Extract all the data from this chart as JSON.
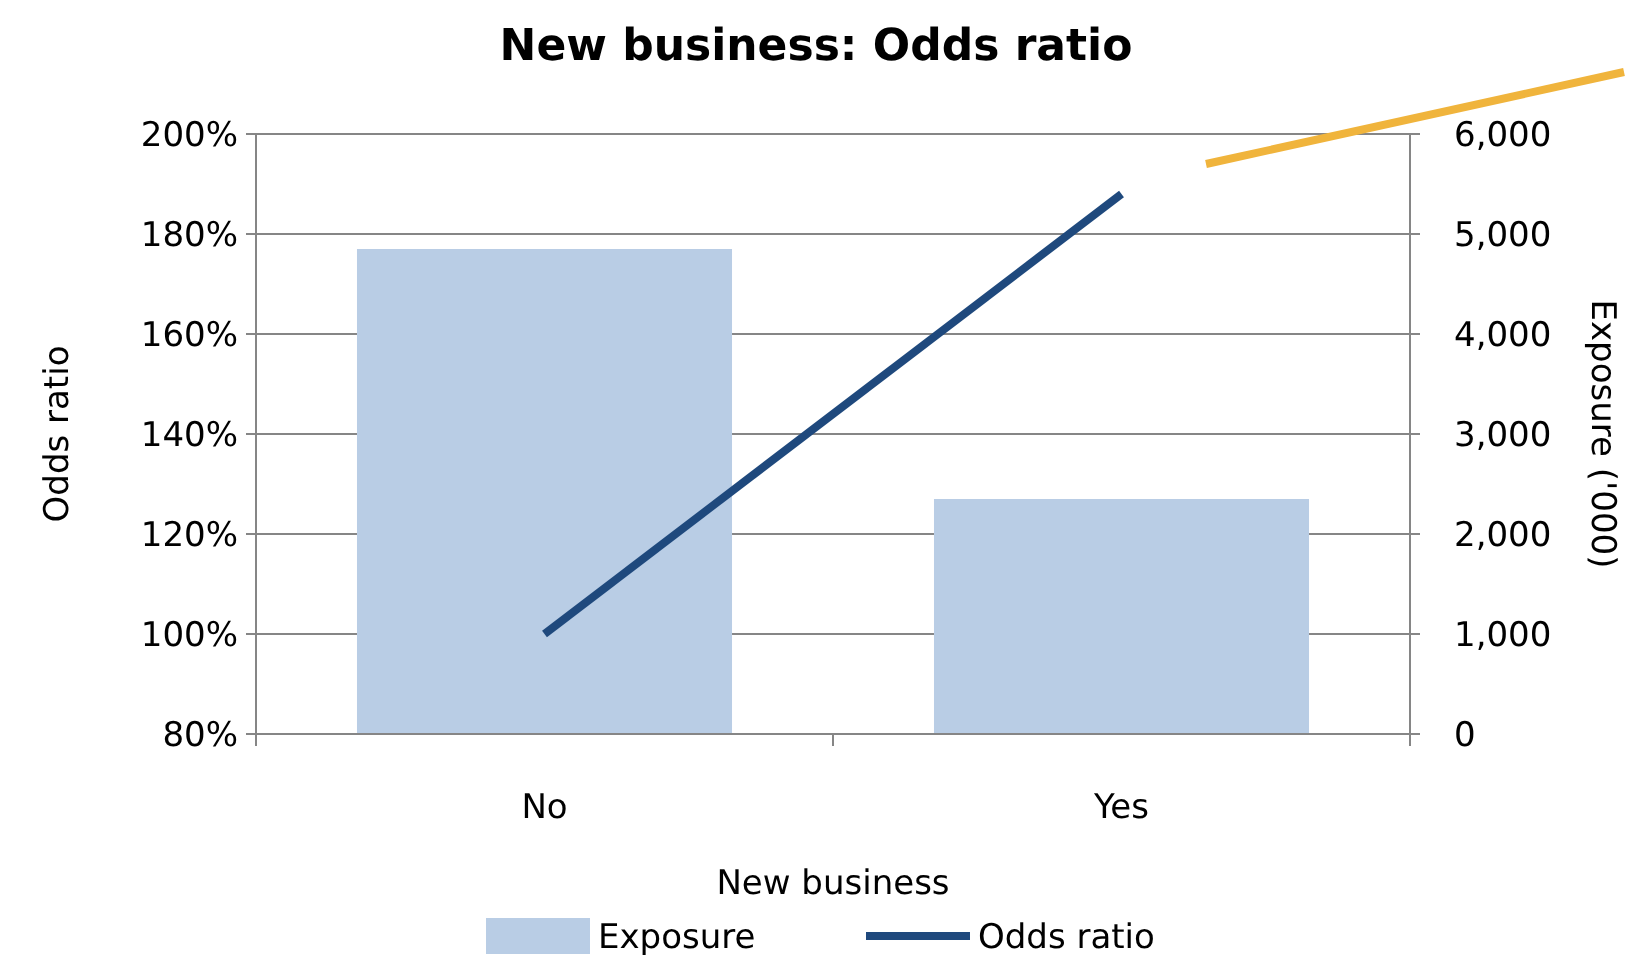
{
  "chart_data": {
    "type": "bar",
    "title": "New business: Odds ratio",
    "xlabel": "New business",
    "ylabel": "Odds ratio",
    "y2label": "Exposure ('000)",
    "categories": [
      "No",
      "Yes"
    ],
    "series": [
      {
        "name": "Exposure",
        "axis": "y2",
        "color": "#b9cde5",
        "values": [
          4850,
          2350
        ]
      },
      {
        "name": "Odds ratio",
        "type": "line",
        "color": "#1f497d",
        "values": [
          1.0,
          1.88
        ]
      }
    ],
    "ylim": [
      0.8,
      2.0
    ],
    "yticks": [
      {
        "value": 0.8,
        "label": "80%"
      },
      {
        "value": 1.0,
        "label": "100%"
      },
      {
        "value": 1.2,
        "label": "120%"
      },
      {
        "value": 1.4,
        "label": "140%"
      },
      {
        "value": 1.6,
        "label": "160%"
      },
      {
        "value": 1.8,
        "label": "180%"
      },
      {
        "value": 2.0,
        "label": "200%"
      }
    ],
    "y2lim": [
      0,
      6000
    ],
    "y2ticks": [
      0,
      {
        "value": 1000,
        "label": "1,000"
      },
      {
        "value": 2000,
        "label": "2,000"
      },
      {
        "value": 3000,
        "label": "3,000"
      },
      {
        "value": 4000,
        "label": "4,000"
      },
      {
        "value": 5000,
        "label": "5,000"
      },
      {
        "value": 6000,
        "label": "6,000"
      }
    ],
    "grid": "y",
    "legend": "bottom",
    "marker": "none",
    "line_style": "solid"
  }
}
